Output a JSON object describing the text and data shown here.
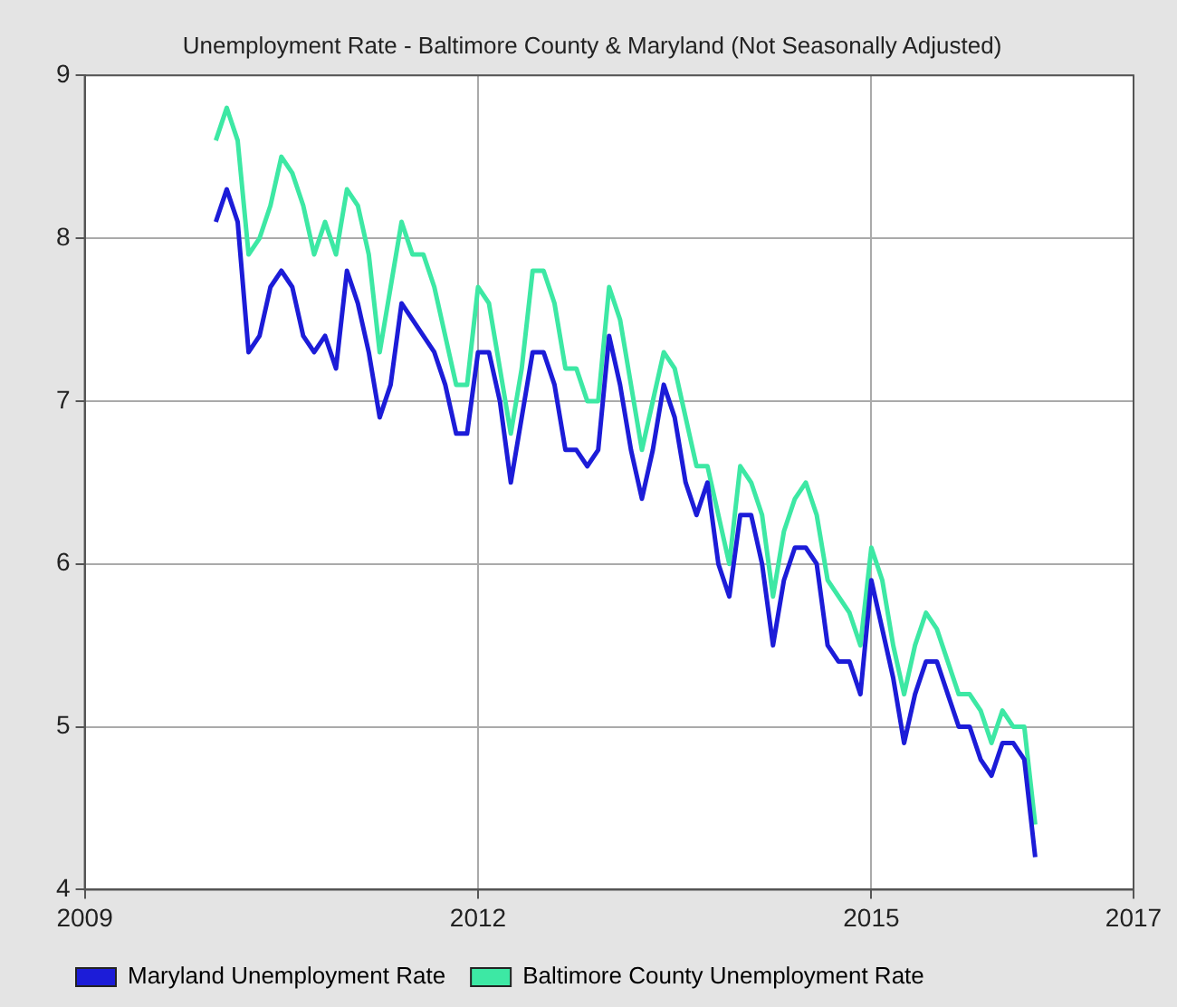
{
  "chart_data": {
    "type": "line",
    "title": "Unemployment Rate - Baltimore County & Maryland (Not Seasonally Adjusted)",
    "x": [
      "2010-01",
      "2010-02",
      "2010-03",
      "2010-04",
      "2010-05",
      "2010-06",
      "2010-07",
      "2010-08",
      "2010-09",
      "2010-10",
      "2010-11",
      "2010-12",
      "2011-01",
      "2011-02",
      "2011-03",
      "2011-04",
      "2011-05",
      "2011-06",
      "2011-07",
      "2011-08",
      "2011-09",
      "2011-10",
      "2011-11",
      "2011-12",
      "2012-01",
      "2012-02",
      "2012-03",
      "2012-04",
      "2012-05",
      "2012-06",
      "2012-07",
      "2012-08",
      "2012-09",
      "2012-10",
      "2012-11",
      "2012-12",
      "2013-01",
      "2013-02",
      "2013-03",
      "2013-04",
      "2013-05",
      "2013-06",
      "2013-07",
      "2013-08",
      "2013-09",
      "2013-10",
      "2013-11",
      "2013-12",
      "2014-01",
      "2014-02",
      "2014-03",
      "2014-04",
      "2014-05",
      "2014-06",
      "2014-07",
      "2014-08",
      "2014-09",
      "2014-10",
      "2014-11",
      "2014-12",
      "2015-01",
      "2015-02",
      "2015-03",
      "2015-04",
      "2015-05",
      "2015-06",
      "2015-07",
      "2015-08",
      "2015-09",
      "2015-10",
      "2015-11",
      "2015-12",
      "2016-01",
      "2016-02",
      "2016-03",
      "2016-04"
    ],
    "series": [
      {
        "name": "Maryland Unemployment Rate",
        "color": "#1c1cd8",
        "values": [
          8.1,
          8.3,
          8.1,
          7.3,
          7.4,
          7.7,
          7.8,
          7.7,
          7.4,
          7.3,
          7.4,
          7.2,
          7.8,
          7.6,
          7.3,
          6.9,
          7.1,
          7.6,
          7.5,
          7.4,
          7.3,
          7.1,
          6.8,
          6.8,
          7.3,
          7.3,
          7.0,
          6.5,
          6.9,
          7.3,
          7.3,
          7.1,
          6.7,
          6.7,
          6.6,
          6.7,
          7.4,
          7.1,
          6.7,
          6.4,
          6.7,
          7.1,
          6.9,
          6.5,
          6.3,
          6.5,
          6.0,
          5.8,
          6.3,
          6.3,
          6.0,
          5.5,
          5.9,
          6.1,
          6.1,
          6.0,
          5.5,
          5.4,
          5.4,
          5.2,
          5.9,
          5.6,
          5.3,
          4.9,
          5.2,
          5.4,
          5.4,
          5.2,
          5.0,
          5.0,
          4.8,
          4.7,
          4.9,
          4.9,
          4.8,
          4.2
        ]
      },
      {
        "name": "Baltimore County Unemployment Rate",
        "color": "#3de8a4",
        "values": [
          8.6,
          8.8,
          8.6,
          7.9,
          8.0,
          8.2,
          8.5,
          8.4,
          8.2,
          7.9,
          8.1,
          7.9,
          8.3,
          8.2,
          7.9,
          7.3,
          7.7,
          8.1,
          7.9,
          7.9,
          7.7,
          7.4,
          7.1,
          7.1,
          7.7,
          7.6,
          7.2,
          6.8,
          7.2,
          7.8,
          7.8,
          7.6,
          7.2,
          7.2,
          7.0,
          7.0,
          7.7,
          7.5,
          7.1,
          6.7,
          7.0,
          7.3,
          7.2,
          6.9,
          6.6,
          6.6,
          6.3,
          6.0,
          6.6,
          6.5,
          6.3,
          5.8,
          6.2,
          6.4,
          6.5,
          6.3,
          5.9,
          5.8,
          5.7,
          5.5,
          6.1,
          5.9,
          5.5,
          5.2,
          5.5,
          5.7,
          5.6,
          5.4,
          5.2,
          5.2,
          5.1,
          4.9,
          5.1,
          5.0,
          5.0,
          4.4
        ]
      }
    ],
    "xlim": [
      "2009",
      "2017"
    ],
    "xticks": [
      "2009",
      "2012",
      "2015",
      "2017"
    ],
    "ylim": [
      4,
      9
    ],
    "yticks": [
      4,
      5,
      6,
      7,
      8,
      9
    ],
    "grid": true,
    "legend": "bottom left",
    "marker": "none",
    "line_style": "solid"
  }
}
